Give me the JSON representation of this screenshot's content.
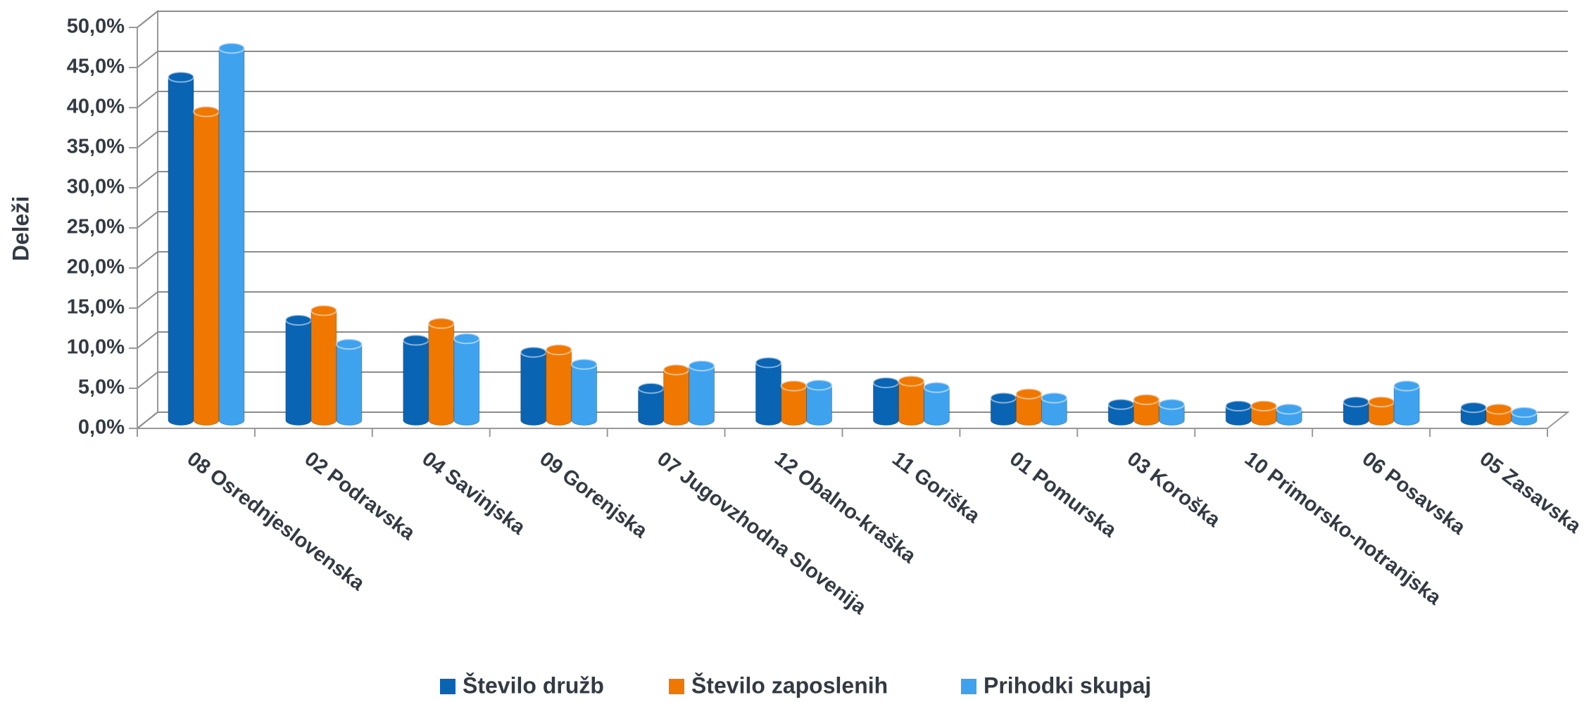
{
  "chart_data": {
    "type": "bar3d",
    "y_axis_label": "Deleži",
    "categories": [
      "08 Osrednjeslovenska",
      "02 Podravska",
      "04 Savinjska",
      "09 Gorenjska",
      "07 Jugovzhodna Slovenija",
      "12 Obalno-kraška",
      "11 Goriška",
      "01 Pomurska",
      "03 Koroška",
      "10 Primorsko-notranjska",
      "06 Posavska",
      "05 Zasavska"
    ],
    "series": [
      {
        "name": "Število družb",
        "color": "#0a64b4",
        "values": [
          42.8,
          12.5,
          10.0,
          8.5,
          4.0,
          7.2,
          4.7,
          2.8,
          2.0,
          1.8,
          2.3,
          1.6
        ]
      },
      {
        "name": "Število zaposlenih",
        "color": "#f07800",
        "values": [
          38.5,
          13.7,
          12.1,
          8.8,
          6.3,
          4.3,
          4.9,
          3.3,
          2.6,
          1.8,
          2.3,
          1.4
        ]
      },
      {
        "name": "Prihodki skupaj",
        "color": "#3fa2ef",
        "values": [
          46.4,
          9.5,
          10.2,
          7.0,
          6.8,
          4.4,
          4.1,
          2.8,
          2.0,
          1.4,
          4.3,
          1.0
        ]
      }
    ],
    "ylim": [
      0,
      50
    ],
    "yticks": [
      {
        "value": 0,
        "label": "0,0%"
      },
      {
        "value": 5,
        "label": "5,0%"
      },
      {
        "value": 10,
        "label": "10,0%"
      },
      {
        "value": 15,
        "label": "15,0%"
      },
      {
        "value": 20,
        "label": "20,0%"
      },
      {
        "value": 25,
        "label": "25,0%"
      },
      {
        "value": 30,
        "label": "30,0%"
      },
      {
        "value": 35,
        "label": "35,0%"
      },
      {
        "value": 40,
        "label": "40,0%"
      },
      {
        "value": 45,
        "label": "45,0%"
      },
      {
        "value": 50,
        "label": "50,0%"
      }
    ],
    "grid": true,
    "legend": "bottom"
  }
}
